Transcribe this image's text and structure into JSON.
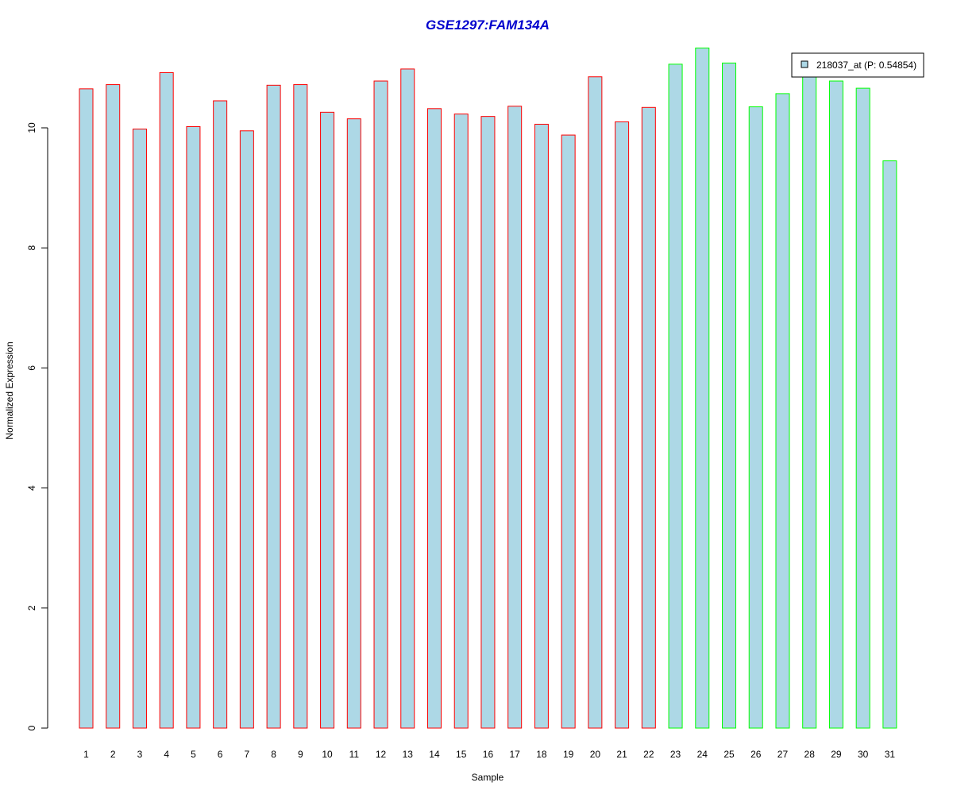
{
  "chart_data": {
    "type": "bar",
    "title": "GSE1297:FAM134A",
    "xlabel": "Sample",
    "ylabel": "Normalized Expression",
    "categories": [
      "1",
      "2",
      "3",
      "4",
      "5",
      "6",
      "7",
      "8",
      "9",
      "10",
      "11",
      "12",
      "13",
      "14",
      "15",
      "16",
      "17",
      "18",
      "19",
      "20",
      "21",
      "22",
      "23",
      "24",
      "25",
      "26",
      "27",
      "28",
      "29",
      "30",
      "31"
    ],
    "values": [
      10.65,
      10.72,
      9.98,
      10.92,
      10.02,
      10.45,
      9.95,
      10.71,
      10.72,
      10.26,
      10.15,
      10.78,
      10.98,
      10.32,
      10.23,
      10.19,
      10.36,
      10.06,
      9.88,
      10.85,
      10.1,
      10.34,
      11.06,
      11.33,
      11.08,
      10.35,
      10.57,
      10.87,
      10.78,
      10.66,
      9.45
    ],
    "groups": [
      "red",
      "red",
      "red",
      "red",
      "red",
      "red",
      "red",
      "red",
      "red",
      "red",
      "red",
      "red",
      "red",
      "red",
      "red",
      "red",
      "red",
      "red",
      "red",
      "red",
      "red",
      "red",
      "green",
      "green",
      "green",
      "green",
      "green",
      "green",
      "green",
      "green",
      "green"
    ],
    "yticks": [
      0,
      2,
      4,
      6,
      8,
      10
    ],
    "ylim": [
      0,
      11.4
    ],
    "grid": false,
    "legend": {
      "label": "218037_at (P: 0.54854)",
      "placement": "top-right"
    },
    "colors": {
      "bar_fill": "#add8e6",
      "group_red": "#ff0000",
      "group_green": "#00ff00",
      "title": "#0000cd",
      "axis": "#000000"
    }
  }
}
